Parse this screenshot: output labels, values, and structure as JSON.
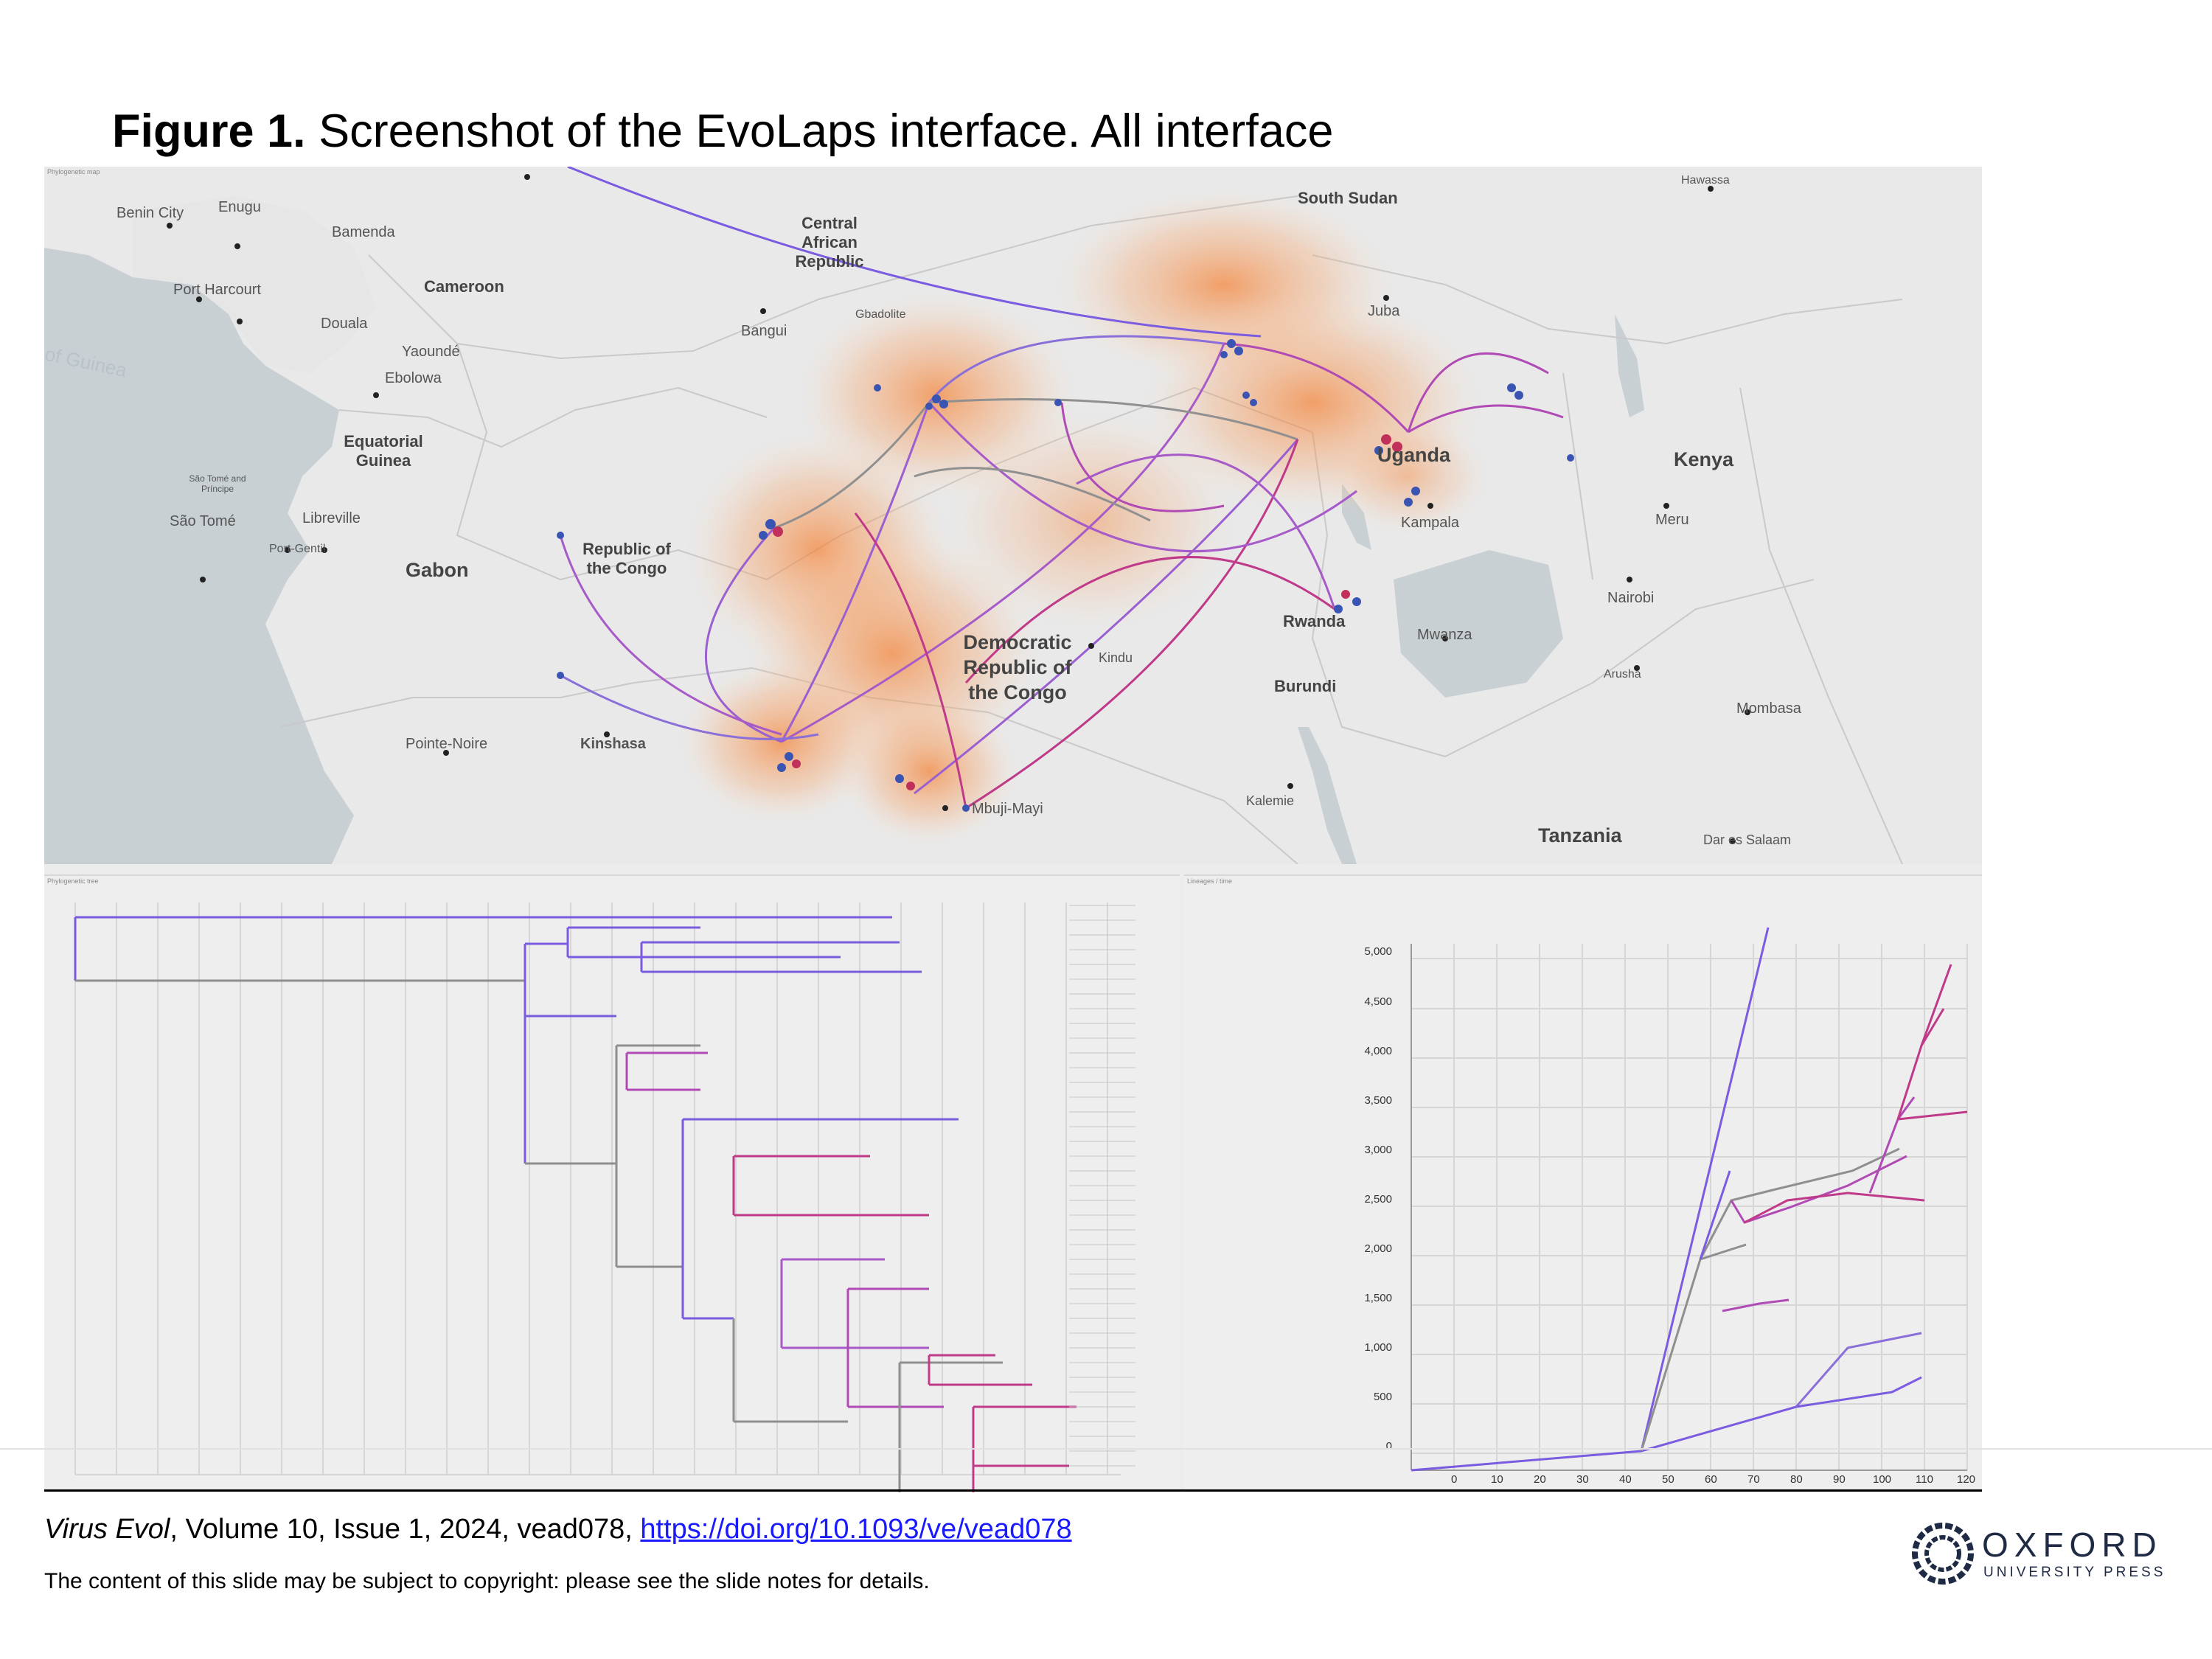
{
  "figure": {
    "label": "Figure 1.",
    "caption": "Screenshot of the EvoLaps interface. All interface"
  },
  "map": {
    "labels": [
      {
        "key": "benin",
        "text": "Benin City"
      },
      {
        "key": "enugu",
        "text": "Enugu"
      },
      {
        "key": "bamenda",
        "text": "Bamenda"
      },
      {
        "key": "portharcourt",
        "text": "Port Harcourt"
      },
      {
        "key": "douala",
        "text": "Douala"
      },
      {
        "key": "yaounde",
        "text": "Yaoundé"
      },
      {
        "key": "ebolowa",
        "text": "Ebolowa"
      },
      {
        "key": "libreville",
        "text": "Libreville"
      },
      {
        "key": "portgentil",
        "text": "Port-Gentil"
      },
      {
        "key": "saotome_country",
        "text": "São Tomé and Príncipe"
      },
      {
        "key": "saotome",
        "text": "São Tomé"
      },
      {
        "key": "bangui",
        "text": "Bangui"
      },
      {
        "key": "gbadolite",
        "text": "Gbadolite"
      },
      {
        "key": "juba",
        "text": "Juba"
      },
      {
        "key": "hawassa",
        "text": "Hawassa"
      },
      {
        "key": "kampala",
        "text": "Kampala"
      },
      {
        "key": "meru",
        "text": "Meru"
      },
      {
        "key": "nairobi",
        "text": "Nairobi"
      },
      {
        "key": "mwanza",
        "text": "Mwanza"
      },
      {
        "key": "arusha",
        "text": "Arusha"
      },
      {
        "key": "mombasa",
        "text": "Mombasa"
      },
      {
        "key": "kindu",
        "text": "Kindu"
      },
      {
        "key": "kalemie",
        "text": "Kalemie"
      },
      {
        "key": "mbujimayi",
        "text": "Mbuji-Mayi"
      },
      {
        "key": "kinshasa",
        "text": "Kinshasa"
      },
      {
        "key": "pointenoire",
        "text": "Pointe-Noire"
      },
      {
        "key": "daressalaam",
        "text": "Dar es Salaam"
      },
      {
        "key": "gulf",
        "text": "of Guinea"
      }
    ],
    "countries": {
      "car": "Central African Republic",
      "cameroon": "Cameroon",
      "eqguinea": "Equatorial Guinea",
      "gabon": "Gabon",
      "roc": "Republic of the Congo",
      "drc": "Democratic Republic of the Congo",
      "southsudan": "South Sudan",
      "uganda": "Uganda",
      "kenya": "Kenya",
      "rwanda": "Rwanda",
      "burundi": "Burundi",
      "tanzania": "Tanzania"
    },
    "colors": {
      "heat": "#f57c2b",
      "migration_early": "#7b5ce0",
      "migration_late": "#c03a8a",
      "node": "#3a54b4"
    }
  },
  "ltt": {
    "y_ticks": [
      "5,000",
      "4,500",
      "4,000",
      "3,500",
      "3,000",
      "2,500",
      "2,000",
      "1,500",
      "1,000",
      "500",
      "0"
    ],
    "x_ticks": [
      "0",
      "10",
      "20",
      "30",
      "40",
      "50",
      "60",
      "70",
      "80",
      "90",
      "100",
      "110",
      "120"
    ]
  },
  "citation": {
    "journal": "Virus Evol",
    "details": ", Volume 10, Issue 1, 2024, vead078, ",
    "doi": "https://doi.org/10.1093/ve/vead078"
  },
  "notice": "The content of this slide may be subject to copyright: please see the slide notes for details.",
  "publisher": {
    "name": "OXFORD",
    "sub": "UNIVERSITY PRESS"
  }
}
